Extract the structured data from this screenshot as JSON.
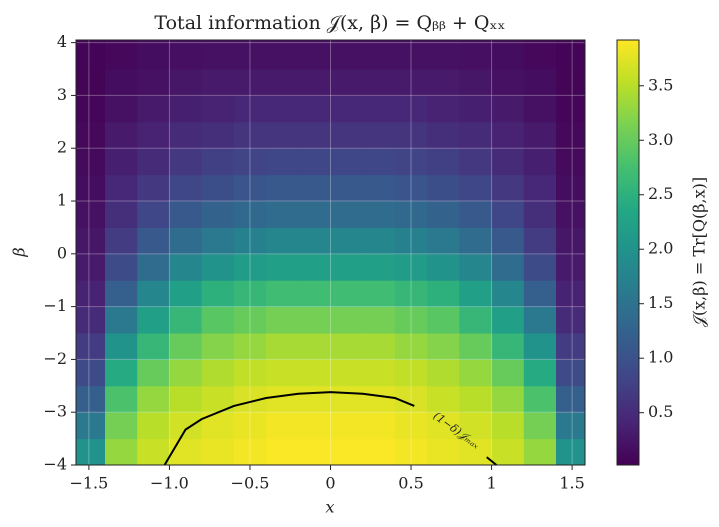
{
  "chart_data": {
    "type": "heatmap",
    "title": "Total information 𝒥(x, β) = Qᵦᵦ + Qₓₓ",
    "x_label": "x",
    "y_label": "β",
    "colorbar_label": "𝒥(x,β) = Tr[Q(β,x)]",
    "colormap": "viridis",
    "clim": [
      0.02,
      3.92
    ],
    "colorbar_ticks": [
      0.5,
      1.0,
      1.5,
      2.0,
      2.5,
      3.0,
      3.5
    ],
    "xlim": [
      -1.58,
      1.58
    ],
    "ylim": [
      -4,
      4.05
    ],
    "xticks": [
      {
        "value": -1.5,
        "label": "−1.5"
      },
      {
        "value": -1.0,
        "label": "−1.0"
      },
      {
        "value": -0.5,
        "label": "−0.5"
      },
      0.0,
      0.5,
      1.0,
      1.5
    ],
    "yticks": [
      {
        "value": -4,
        "label": "−4"
      },
      {
        "value": -3,
        "label": "−3"
      },
      {
        "value": -2,
        "label": "−2"
      },
      {
        "value": -1,
        "label": "−1"
      },
      0,
      1,
      2,
      3,
      4
    ],
    "grid": true,
    "x_bins": [
      -1.58,
      -1.4,
      -1.2,
      -1.0,
      -0.8,
      -0.6,
      -0.4,
      -0.2,
      0,
      0.2,
      0.4,
      0.6,
      0.8,
      1.0,
      1.2,
      1.4,
      1.58
    ],
    "y_bins": [
      -4,
      -3.5,
      -3,
      -2.5,
      -2,
      -1.5,
      -1,
      -0.5,
      0,
      0.5,
      1,
      1.5,
      2,
      2.5,
      3,
      3.5,
      4.05
    ],
    "z": [
      [
        2.0,
        3.3,
        3.6,
        3.75,
        3.8,
        3.85,
        3.9,
        3.9,
        3.9,
        3.9,
        3.85,
        3.8,
        3.75,
        3.6,
        3.3,
        2.0
      ],
      [
        1.6,
        3.1,
        3.5,
        3.65,
        3.75,
        3.8,
        3.85,
        3.85,
        3.85,
        3.85,
        3.8,
        3.75,
        3.65,
        3.5,
        3.1,
        1.6
      ],
      [
        1.2,
        2.8,
        3.3,
        3.5,
        3.6,
        3.7,
        3.75,
        3.75,
        3.75,
        3.75,
        3.7,
        3.6,
        3.5,
        3.3,
        2.8,
        1.2
      ],
      [
        0.9,
        2.4,
        3.0,
        3.3,
        3.45,
        3.55,
        3.6,
        3.6,
        3.6,
        3.6,
        3.55,
        3.45,
        3.3,
        3.0,
        2.4,
        0.9
      ],
      [
        0.7,
        2.0,
        2.6,
        3.0,
        3.2,
        3.3,
        3.4,
        3.4,
        3.4,
        3.4,
        3.3,
        3.2,
        3.0,
        2.6,
        2.0,
        0.7
      ],
      [
        0.5,
        1.6,
        2.2,
        2.6,
        2.9,
        3.0,
        3.1,
        3.1,
        3.1,
        3.1,
        3.0,
        2.9,
        2.6,
        2.2,
        1.6,
        0.5
      ],
      [
        0.4,
        1.2,
        1.8,
        2.2,
        2.5,
        2.6,
        2.7,
        2.7,
        2.7,
        2.7,
        2.6,
        2.5,
        2.2,
        1.8,
        1.2,
        0.4
      ],
      [
        0.3,
        0.9,
        1.4,
        1.8,
        2.0,
        2.15,
        2.2,
        2.2,
        2.2,
        2.2,
        2.15,
        2.0,
        1.8,
        1.4,
        0.9,
        0.3
      ],
      [
        0.25,
        0.7,
        1.1,
        1.4,
        1.6,
        1.7,
        1.8,
        1.8,
        1.8,
        1.8,
        1.7,
        1.6,
        1.4,
        1.1,
        0.7,
        0.25
      ],
      [
        0.2,
        0.55,
        0.85,
        1.1,
        1.25,
        1.35,
        1.4,
        1.4,
        1.4,
        1.4,
        1.35,
        1.25,
        1.1,
        0.85,
        0.55,
        0.2
      ],
      [
        0.15,
        0.45,
        0.65,
        0.85,
        0.95,
        1.05,
        1.1,
        1.1,
        1.1,
        1.1,
        1.05,
        0.95,
        0.85,
        0.65,
        0.45,
        0.15
      ],
      [
        0.12,
        0.35,
        0.5,
        0.65,
        0.75,
        0.8,
        0.85,
        0.85,
        0.85,
        0.85,
        0.8,
        0.75,
        0.65,
        0.5,
        0.35,
        0.12
      ],
      [
        0.1,
        0.3,
        0.4,
        0.5,
        0.55,
        0.6,
        0.6,
        0.6,
        0.6,
        0.6,
        0.6,
        0.55,
        0.5,
        0.4,
        0.3,
        0.1
      ],
      [
        0.08,
        0.2,
        0.3,
        0.35,
        0.4,
        0.45,
        0.45,
        0.45,
        0.45,
        0.45,
        0.45,
        0.4,
        0.35,
        0.3,
        0.2,
        0.08
      ],
      [
        0.06,
        0.15,
        0.2,
        0.25,
        0.3,
        0.3,
        0.3,
        0.3,
        0.3,
        0.3,
        0.3,
        0.3,
        0.25,
        0.2,
        0.15,
        0.06
      ],
      [
        0.05,
        0.1,
        0.15,
        0.18,
        0.2,
        0.2,
        0.2,
        0.2,
        0.2,
        0.2,
        0.2,
        0.2,
        0.18,
        0.15,
        0.1,
        0.05
      ]
    ],
    "contour": {
      "label": "(1−δ)𝒥ₘₐₓ",
      "color": "#000000",
      "x": [
        -1.03,
        -0.9,
        -0.8,
        -0.6,
        -0.4,
        -0.2,
        0,
        0.2,
        0.4,
        0.52,
        null,
        0.97,
        1.03
      ],
      "y": [
        -4,
        -3.33,
        -3.13,
        -2.88,
        -2.73,
        -2.65,
        -2.62,
        -2.65,
        -2.73,
        -2.88,
        null,
        -3.85,
        -4
      ]
    }
  }
}
